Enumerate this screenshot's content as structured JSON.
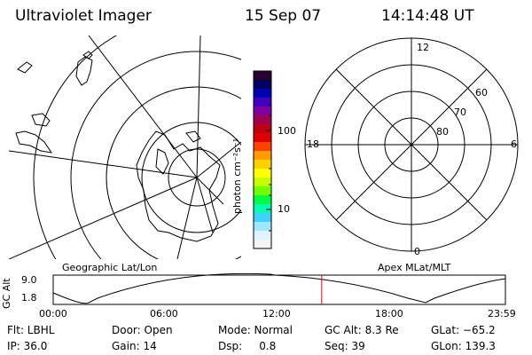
{
  "header": {
    "instrument": "Ultraviolet Imager",
    "date": "15 Sep 07",
    "time": "14:14:48 UT"
  },
  "left_panel": {
    "label": "Geographic Lat/Lon"
  },
  "right_panel": {
    "label": "Apex MLat/MLT",
    "mlt_labels": {
      "top": "12",
      "left": "18",
      "right": "6",
      "bottom": "0"
    },
    "lat_labels": [
      "60",
      "70",
      "80"
    ]
  },
  "colorbar": {
    "unit": "photon cm⁻²s⁻¹",
    "ticks": [
      "100",
      "10"
    ],
    "colors": [
      "#2a0030",
      "#000060",
      "#0000b0",
      "#4000c0",
      "#8000a0",
      "#a00050",
      "#c00010",
      "#e00000",
      "#ff4000",
      "#ff9a00",
      "#ffd000",
      "#ffff00",
      "#c8ff00",
      "#70ff00",
      "#00ff40",
      "#00ffb0",
      "#40d0ff",
      "#a0e8ff",
      "#e0f4ff",
      "#f4f4f4"
    ]
  },
  "altitude_plot": {
    "ylabel": "GC Alt",
    "y_ticks": [
      "9.0",
      "1.8"
    ],
    "x_ticks": [
      "00:00",
      "06:00",
      "12:00",
      "18:00",
      "23:59"
    ],
    "marker_hour": 14.25,
    "marker_color": "#ff0000"
  },
  "info": {
    "flt": "Flt: LBHL",
    "ip": "IP: 36.0",
    "door": "Door: Open",
    "gain": "Gain: 14",
    "mode": "Mode: Normal",
    "dsp": "Dsp:     0.8",
    "gc_alt": "GC Alt: 8.3 Re",
    "seq": "Seq: 39",
    "glat": "GLat: −65.2",
    "glon": "GLon: 139.3"
  }
}
